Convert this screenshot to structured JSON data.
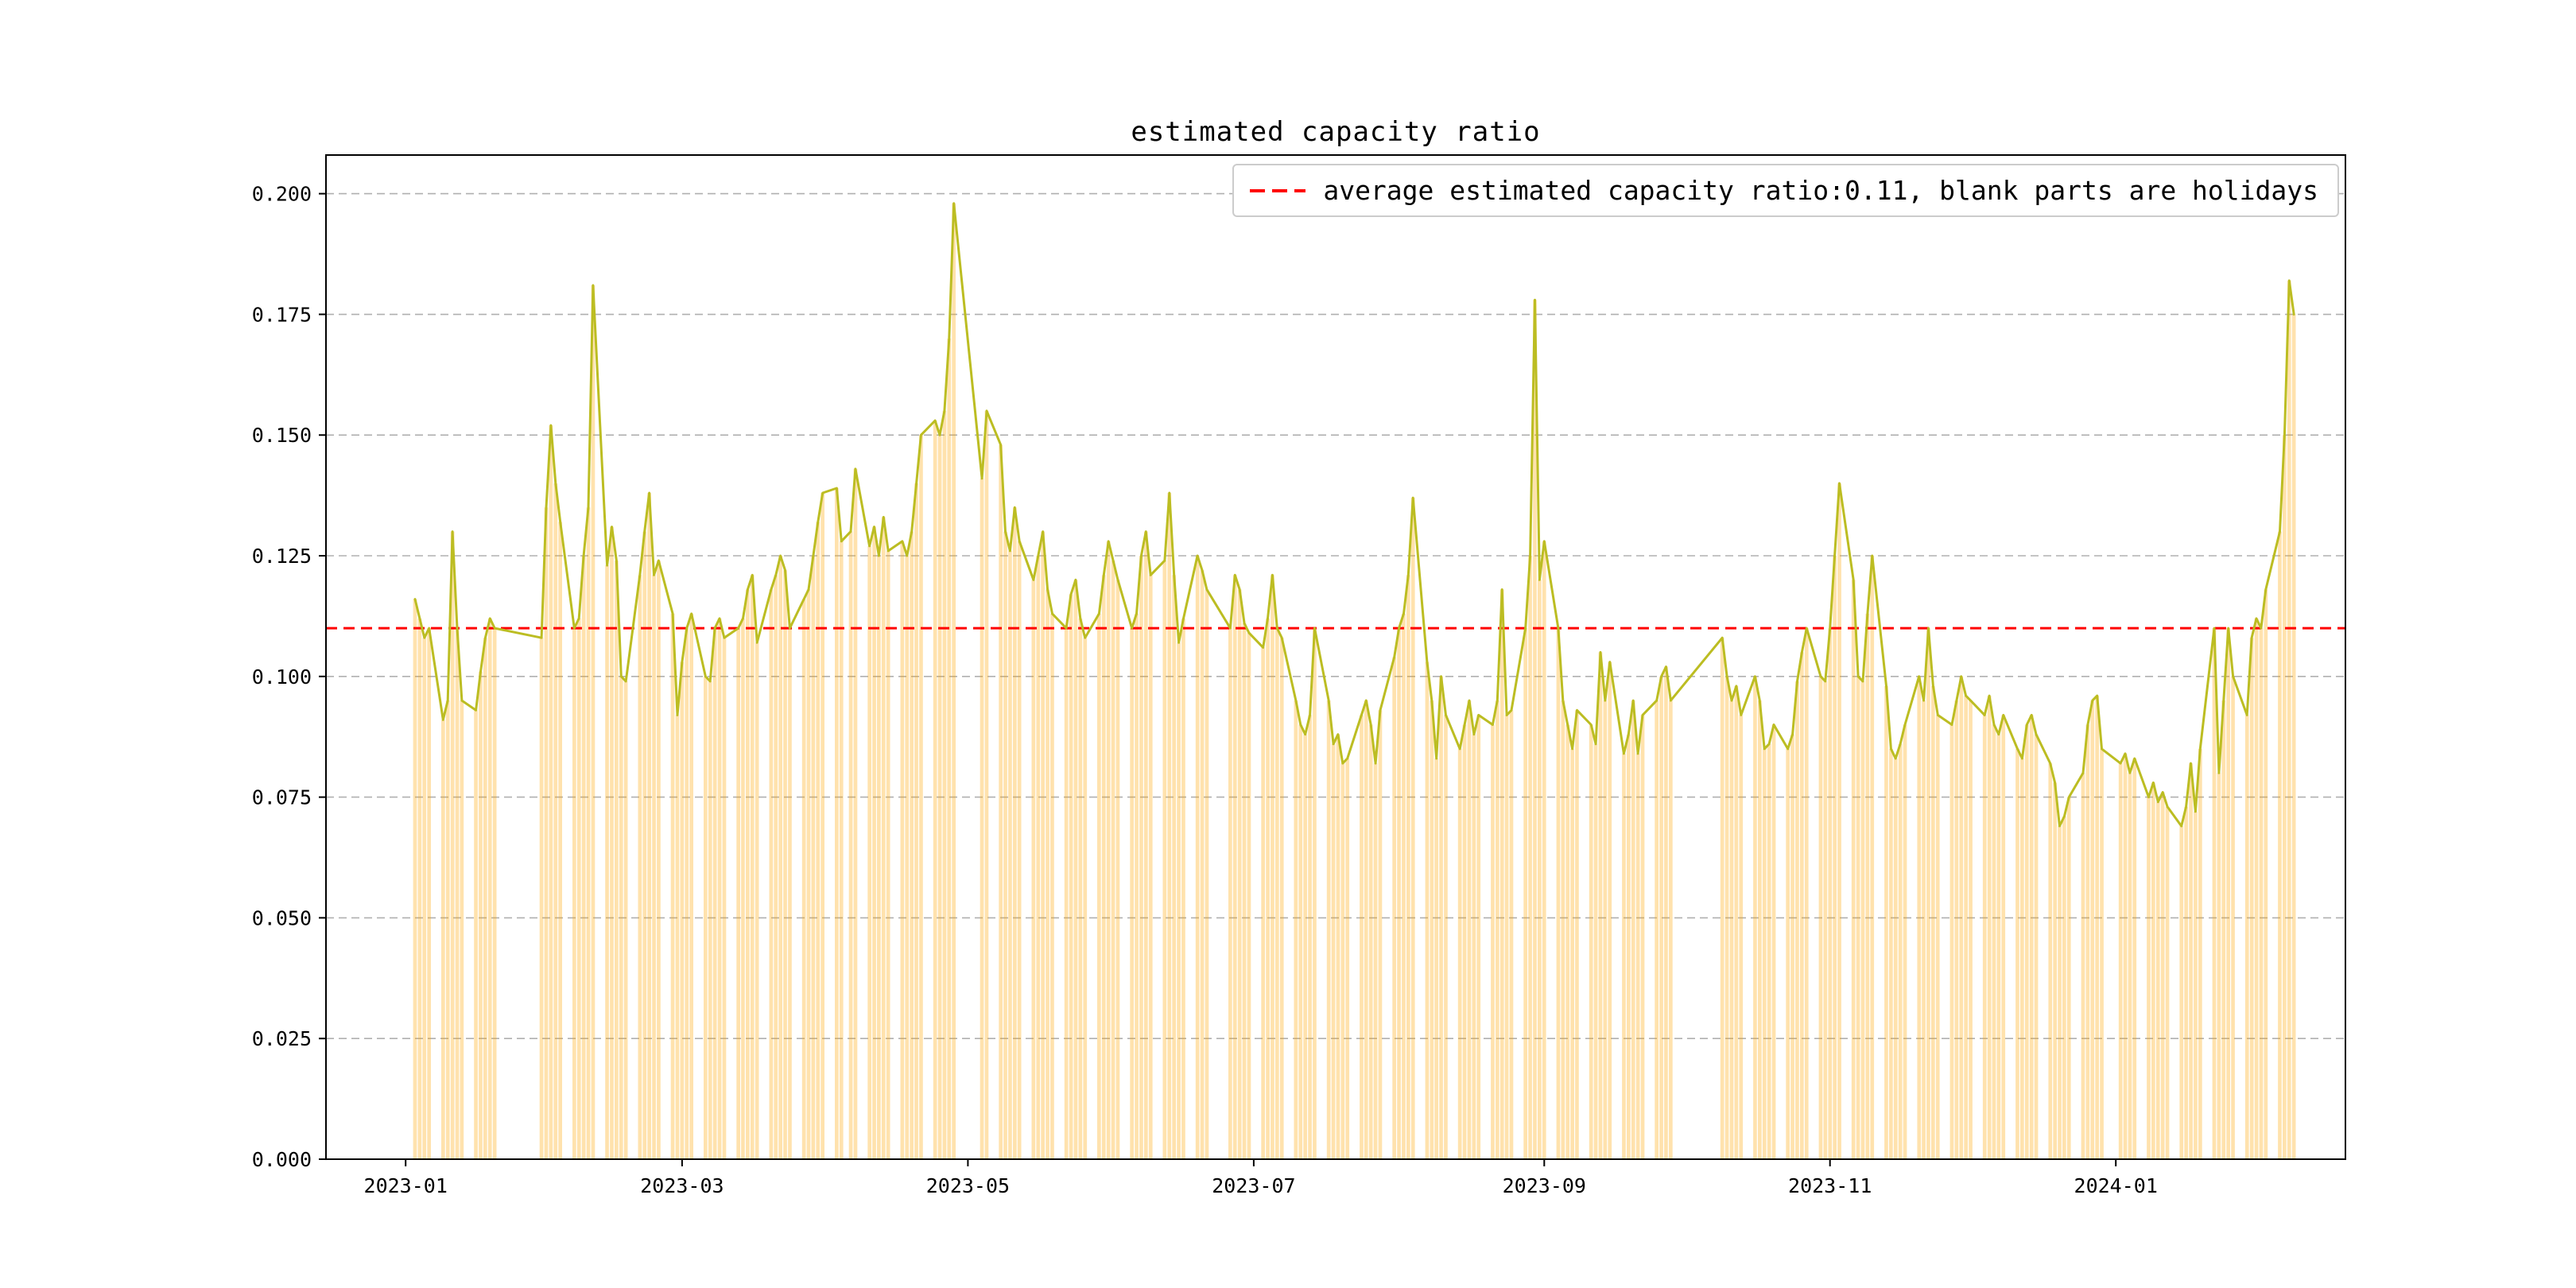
{
  "window": {
    "background": "#ffffff"
  },
  "chart_data": {
    "type": "line",
    "title": "estimated capacity ratio",
    "series_name": "estimated capacity ratio",
    "legend": {
      "label": "average estimated capacity ratio:0.11, blank parts are holidays",
      "position": "upper right"
    },
    "average_value": 0.11,
    "average_line_color": "#ff0000",
    "line_color": "#bcbd22",
    "bar_overlay": {
      "enabled": true,
      "color": "#ffa500",
      "opacity": 0.32
    },
    "grid": true,
    "ylim": [
      0,
      0.208
    ],
    "yticks": [
      0,
      0.025,
      0.05,
      0.075,
      0.1,
      0.125,
      0.15,
      0.175,
      0.2
    ],
    "ytick_labels": [
      "0.000",
      "0.025",
      "0.050",
      "0.075",
      "0.100",
      "0.125",
      "0.150",
      "0.175",
      "0.200"
    ],
    "xtick_dates": [
      "2023-01-01",
      "2023-03-01",
      "2023-05-01",
      "2023-07-01",
      "2023-09-01",
      "2023-11-01",
      "2024-01-01"
    ],
    "xtick_labels": [
      "2023-01",
      "2023-03",
      "2023-05",
      "2023-07",
      "2023-09",
      "2023-11",
      "2024-01"
    ],
    "x_range": [
      "2022-12-15",
      "2024-02-19"
    ],
    "dates": [
      "2023-01-03",
      "2023-01-04",
      "2023-01-05",
      "2023-01-06",
      "2023-01-09",
      "2023-01-10",
      "2023-01-11",
      "2023-01-12",
      "2023-01-13",
      "2023-01-16",
      "2023-01-17",
      "2023-01-18",
      "2023-01-19",
      "2023-01-20",
      "2023-01-30",
      "2023-01-31",
      "2023-02-01",
      "2023-02-02",
      "2023-02-03",
      "2023-02-06",
      "2023-02-07",
      "2023-02-08",
      "2023-02-09",
      "2023-02-10",
      "2023-02-13",
      "2023-02-14",
      "2023-02-15",
      "2023-02-16",
      "2023-02-17",
      "2023-02-20",
      "2023-02-21",
      "2023-02-22",
      "2023-02-23",
      "2023-02-24",
      "2023-02-27",
      "2023-02-28",
      "2023-03-01",
      "2023-03-02",
      "2023-03-03",
      "2023-03-06",
      "2023-03-07",
      "2023-03-08",
      "2023-03-09",
      "2023-03-10",
      "2023-03-13",
      "2023-03-14",
      "2023-03-15",
      "2023-03-16",
      "2023-03-17",
      "2023-03-20",
      "2023-03-21",
      "2023-03-22",
      "2023-03-23",
      "2023-03-24",
      "2023-03-27",
      "2023-03-28",
      "2023-03-29",
      "2023-03-30",
      "2023-03-31",
      "2023-04-03",
      "2023-04-04",
      "2023-04-06",
      "2023-04-07",
      "2023-04-10",
      "2023-04-11",
      "2023-04-12",
      "2023-04-13",
      "2023-04-14",
      "2023-04-17",
      "2023-04-18",
      "2023-04-19",
      "2023-04-20",
      "2023-04-21",
      "2023-04-24",
      "2023-04-25",
      "2023-04-26",
      "2023-04-27",
      "2023-04-28",
      "2023-05-04",
      "2023-05-05",
      "2023-05-08",
      "2023-05-09",
      "2023-05-10",
      "2023-05-11",
      "2023-05-12",
      "2023-05-15",
      "2023-05-16",
      "2023-05-17",
      "2023-05-18",
      "2023-05-19",
      "2023-05-22",
      "2023-05-23",
      "2023-05-24",
      "2023-05-25",
      "2023-05-26",
      "2023-05-29",
      "2023-05-30",
      "2023-05-31",
      "2023-06-01",
      "2023-06-02",
      "2023-06-05",
      "2023-06-06",
      "2023-06-07",
      "2023-06-08",
      "2023-06-09",
      "2023-06-12",
      "2023-06-13",
      "2023-06-14",
      "2023-06-15",
      "2023-06-16",
      "2023-06-19",
      "2023-06-20",
      "2023-06-21",
      "2023-06-26",
      "2023-06-27",
      "2023-06-28",
      "2023-06-29",
      "2023-06-30",
      "2023-07-03",
      "2023-07-04",
      "2023-07-05",
      "2023-07-06",
      "2023-07-07",
      "2023-07-10",
      "2023-07-11",
      "2023-07-12",
      "2023-07-13",
      "2023-07-14",
      "2023-07-17",
      "2023-07-18",
      "2023-07-19",
      "2023-07-20",
      "2023-07-21",
      "2023-07-24",
      "2023-07-25",
      "2023-07-26",
      "2023-07-27",
      "2023-07-28",
      "2023-07-31",
      "2023-08-01",
      "2023-08-02",
      "2023-08-03",
      "2023-08-04",
      "2023-08-07",
      "2023-08-08",
      "2023-08-09",
      "2023-08-10",
      "2023-08-11",
      "2023-08-14",
      "2023-08-15",
      "2023-08-16",
      "2023-08-17",
      "2023-08-18",
      "2023-08-21",
      "2023-08-22",
      "2023-08-23",
      "2023-08-24",
      "2023-08-25",
      "2023-08-28",
      "2023-08-29",
      "2023-08-30",
      "2023-08-31",
      "2023-09-01",
      "2023-09-04",
      "2023-09-05",
      "2023-09-06",
      "2023-09-07",
      "2023-09-08",
      "2023-09-11",
      "2023-09-12",
      "2023-09-13",
      "2023-09-14",
      "2023-09-15",
      "2023-09-18",
      "2023-09-19",
      "2023-09-20",
      "2023-09-21",
      "2023-09-22",
      "2023-09-25",
      "2023-09-26",
      "2023-09-27",
      "2023-09-28",
      "2023-10-09",
      "2023-10-10",
      "2023-10-11",
      "2023-10-12",
      "2023-10-13",
      "2023-10-16",
      "2023-10-17",
      "2023-10-18",
      "2023-10-19",
      "2023-10-20",
      "2023-10-23",
      "2023-10-24",
      "2023-10-25",
      "2023-10-26",
      "2023-10-27",
      "2023-10-30",
      "2023-10-31",
      "2023-11-01",
      "2023-11-02",
      "2023-11-03",
      "2023-11-06",
      "2023-11-07",
      "2023-11-08",
      "2023-11-09",
      "2023-11-10",
      "2023-11-13",
      "2023-11-14",
      "2023-11-15",
      "2023-11-16",
      "2023-11-17",
      "2023-11-20",
      "2023-11-21",
      "2023-11-22",
      "2023-11-23",
      "2023-11-24",
      "2023-11-27",
      "2023-11-28",
      "2023-11-29",
      "2023-11-30",
      "2023-12-01",
      "2023-12-04",
      "2023-12-05",
      "2023-12-06",
      "2023-12-07",
      "2023-12-08",
      "2023-12-11",
      "2023-12-12",
      "2023-12-13",
      "2023-12-14",
      "2023-12-15",
      "2023-12-18",
      "2023-12-19",
      "2023-12-20",
      "2023-12-21",
      "2023-12-22",
      "2023-12-25",
      "2023-12-26",
      "2023-12-27",
      "2023-12-28",
      "2023-12-29",
      "2024-01-02",
      "2024-01-03",
      "2024-01-04",
      "2024-01-05",
      "2024-01-08",
      "2024-01-09",
      "2024-01-10",
      "2024-01-11",
      "2024-01-12",
      "2024-01-15",
      "2024-01-16",
      "2024-01-17",
      "2024-01-18",
      "2024-01-19",
      "2024-01-22",
      "2024-01-23",
      "2024-01-24",
      "2024-01-25",
      "2024-01-26",
      "2024-01-29",
      "2024-01-30",
      "2024-01-31",
      "2024-02-01",
      "2024-02-02",
      "2024-02-05",
      "2024-02-06",
      "2024-02-07",
      "2024-02-08"
    ],
    "values": [
      0.116,
      0.112,
      0.108,
      0.11,
      0.091,
      0.095,
      0.13,
      0.11,
      0.095,
      0.093,
      0.101,
      0.108,
      0.112,
      0.11,
      0.108,
      0.135,
      0.152,
      0.14,
      0.132,
      0.11,
      0.112,
      0.125,
      0.135,
      0.181,
      0.123,
      0.131,
      0.124,
      0.1,
      0.099,
      0.121,
      0.13,
      0.138,
      0.121,
      0.124,
      0.113,
      0.092,
      0.103,
      0.11,
      0.113,
      0.1,
      0.099,
      0.11,
      0.112,
      0.108,
      0.11,
      0.112,
      0.118,
      0.121,
      0.107,
      0.118,
      0.121,
      0.125,
      0.122,
      0.11,
      0.116,
      0.118,
      0.125,
      0.132,
      0.138,
      0.139,
      0.128,
      0.13,
      0.143,
      0.127,
      0.131,
      0.125,
      0.133,
      0.126,
      0.128,
      0.125,
      0.13,
      0.14,
      0.15,
      0.153,
      0.15,
      0.155,
      0.17,
      0.198,
      0.141,
      0.155,
      0.148,
      0.13,
      0.126,
      0.135,
      0.128,
      0.12,
      0.125,
      0.13,
      0.118,
      0.113,
      0.11,
      0.117,
      0.12,
      0.112,
      0.108,
      0.113,
      0.121,
      0.128,
      0.124,
      0.12,
      0.11,
      0.113,
      0.125,
      0.13,
      0.121,
      0.124,
      0.138,
      0.121,
      0.107,
      0.112,
      0.125,
      0.122,
      0.118,
      0.11,
      0.121,
      0.118,
      0.111,
      0.109,
      0.106,
      0.112,
      0.121,
      0.11,
      0.108,
      0.095,
      0.09,
      0.088,
      0.092,
      0.11,
      0.095,
      0.086,
      0.088,
      0.082,
      0.083,
      0.092,
      0.095,
      0.09,
      0.082,
      0.093,
      0.104,
      0.11,
      0.113,
      0.121,
      0.137,
      0.103,
      0.095,
      0.083,
      0.1,
      0.092,
      0.085,
      0.09,
      0.095,
      0.088,
      0.092,
      0.09,
      0.095,
      0.118,
      0.092,
      0.093,
      0.11,
      0.125,
      0.178,
      0.12,
      0.128,
      0.11,
      0.095,
      0.09,
      0.085,
      0.093,
      0.09,
      0.086,
      0.105,
      0.095,
      0.103,
      0.084,
      0.088,
      0.095,
      0.084,
      0.092,
      0.095,
      0.1,
      0.102,
      0.095,
      0.108,
      0.1,
      0.095,
      0.098,
      0.092,
      0.1,
      0.095,
      0.085,
      0.086,
      0.09,
      0.085,
      0.088,
      0.099,
      0.105,
      0.11,
      0.1,
      0.099,
      0.11,
      0.125,
      0.14,
      0.12,
      0.1,
      0.099,
      0.113,
      0.125,
      0.098,
      0.085,
      0.083,
      0.086,
      0.09,
      0.1,
      0.095,
      0.11,
      0.098,
      0.092,
      0.09,
      0.095,
      0.1,
      0.096,
      0.095,
      0.092,
      0.096,
      0.09,
      0.088,
      0.092,
      0.085,
      0.083,
      0.09,
      0.092,
      0.088,
      0.082,
      0.078,
      0.069,
      0.071,
      0.075,
      0.08,
      0.09,
      0.095,
      0.096,
      0.085,
      0.082,
      0.084,
      0.08,
      0.083,
      0.075,
      0.078,
      0.074,
      0.076,
      0.073,
      0.069,
      0.073,
      0.082,
      0.072,
      0.085,
      0.11,
      0.08,
      0.095,
      0.11,
      0.1,
      0.092,
      0.108,
      0.112,
      0.11,
      0.118,
      0.13,
      0.15,
      0.182,
      0.175
    ]
  }
}
